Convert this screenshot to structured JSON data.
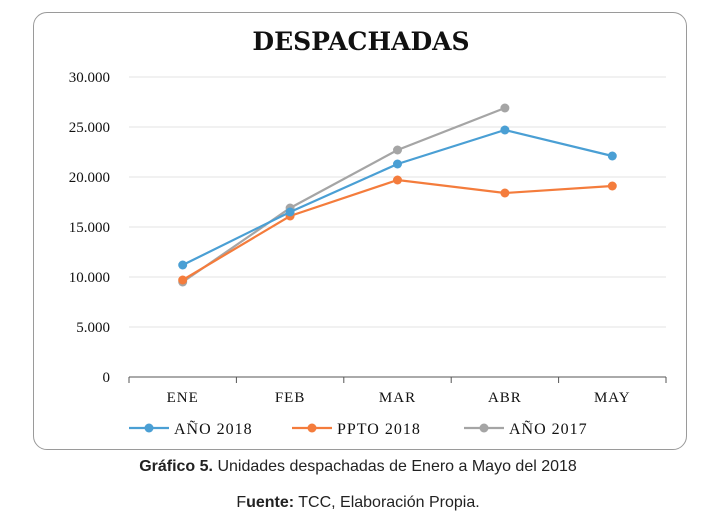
{
  "chart_data": {
    "type": "line",
    "title": "DESPACHADAS",
    "categories": [
      "ENE",
      "FEB",
      "MAR",
      "ABR",
      "MAY"
    ],
    "y_ticks": [
      "0",
      "5.000",
      "10.000",
      "15.000",
      "20.000",
      "25.000",
      "30.000"
    ],
    "ylim": [
      0,
      30000
    ],
    "grid": true,
    "legend_position": "bottom",
    "series": [
      {
        "name": "AÑO 2018",
        "color": "#4a9fd4",
        "values": [
          11200,
          16500,
          21300,
          24700,
          22100
        ]
      },
      {
        "name": "PPTO 2018",
        "color": "#f47c3c",
        "values": [
          9700,
          16100,
          19700,
          18400,
          19100
        ]
      },
      {
        "name": "AÑO 2017",
        "color": "#a5a5a5",
        "values": [
          9500,
          16900,
          22700,
          26900,
          null
        ]
      }
    ]
  },
  "caption": {
    "label": "Gráfico 5.",
    "text": " Unidades despachadas de Enero a Mayo del 2018"
  },
  "source": {
    "prefix": "F",
    "label": "uente:",
    "text": " TCC, Elaboración Propia."
  }
}
